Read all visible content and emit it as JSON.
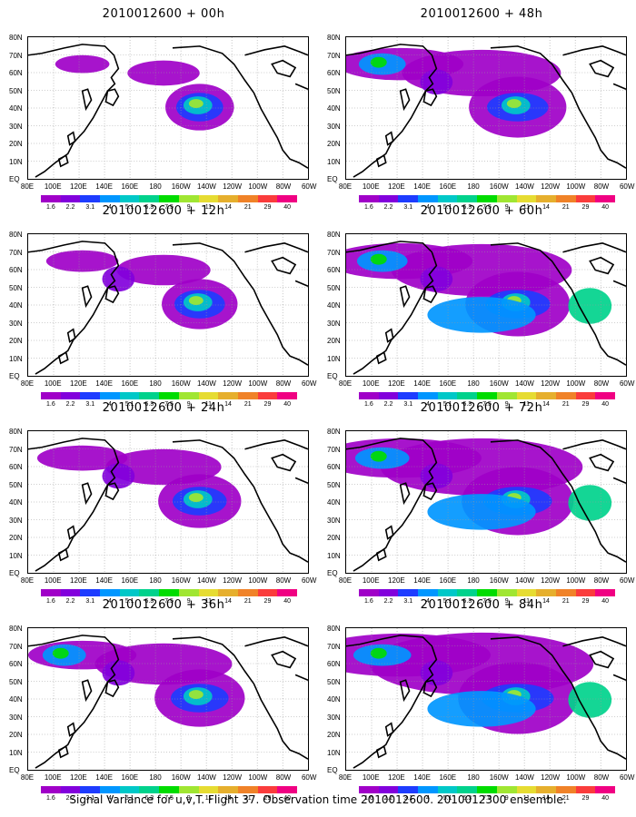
{
  "panels": [
    {
      "title": "2010012600  + 00h",
      "level": 0
    },
    {
      "title": "2010012600  + 48h",
      "level": 4
    },
    {
      "title": "2010012600  + 12h",
      "level": 1
    },
    {
      "title": "2010012600  + 60h",
      "level": 5
    },
    {
      "title": "2010012600  + 24h",
      "level": 2
    },
    {
      "title": "2010012600  + 72h",
      "level": 6
    },
    {
      "title": "2010012600  + 36h",
      "level": 3
    },
    {
      "title": "2010012600  + 84h",
      "level": 7
    }
  ],
  "lat_labels": [
    "80N",
    "70N",
    "60N",
    "50N",
    "40N",
    "30N",
    "20N",
    "10N",
    "EQ"
  ],
  "lon_labels": [
    "80E",
    "100E",
    "120E",
    "140E",
    "160E",
    "180",
    "160W",
    "140W",
    "120W",
    "100W",
    "80W",
    "60W"
  ],
  "colorbar": {
    "colors": [
      "#a000c8",
      "#8200dc",
      "#1e3cff",
      "#0096ff",
      "#00c8c8",
      "#00d28c",
      "#00dc00",
      "#a0e632",
      "#e6dc32",
      "#e6af2d",
      "#f08228",
      "#fa3c3c",
      "#f00082"
    ],
    "labels": [
      "1.6",
      "2.2",
      "3.1",
      "4",
      "5.1",
      "6.3",
      "7.5",
      "9",
      "11",
      "14",
      "21",
      "29",
      "40"
    ]
  },
  "footer": "Signal Variance for u,v,T. Flight 37. Observation time 2010012600. 2010012300 ensemble."
}
